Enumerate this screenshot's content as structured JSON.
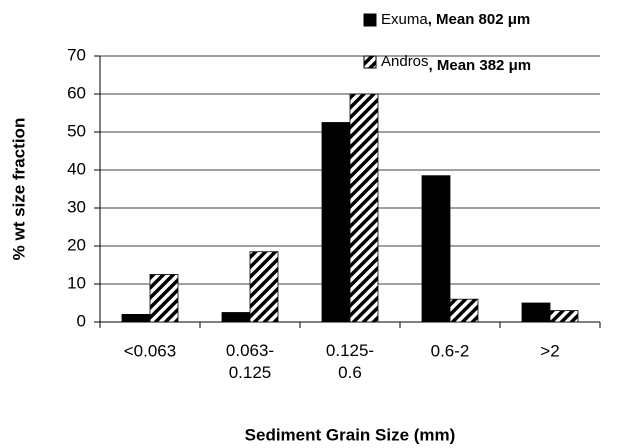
{
  "chart_data": {
    "type": "bar",
    "categories": [
      "<0.063",
      "0.063-\n0.125",
      "0.125-\n0.6",
      "0.6-2",
      ">2"
    ],
    "series": [
      {
        "name": "Exuma",
        "color": "#000000",
        "values": [
          2,
          2.5,
          52.5,
          38.5,
          5
        ]
      },
      {
        "name": "Andros",
        "color": "#000000",
        "pattern": "diagonal-hatch",
        "values": [
          12.5,
          18.5,
          60,
          6,
          3
        ]
      }
    ],
    "legend_notes": [
      ", Mean 802 μm",
      ", Mean 382 μm"
    ],
    "xlabel": "Sediment Grain Size (mm)",
    "ylabel": "% wt size fraction",
    "ylim": [
      0,
      70
    ],
    "yticks": [
      0,
      10,
      20,
      30,
      40,
      50,
      60,
      70
    ],
    "grid": true,
    "legend": "top-right"
  }
}
